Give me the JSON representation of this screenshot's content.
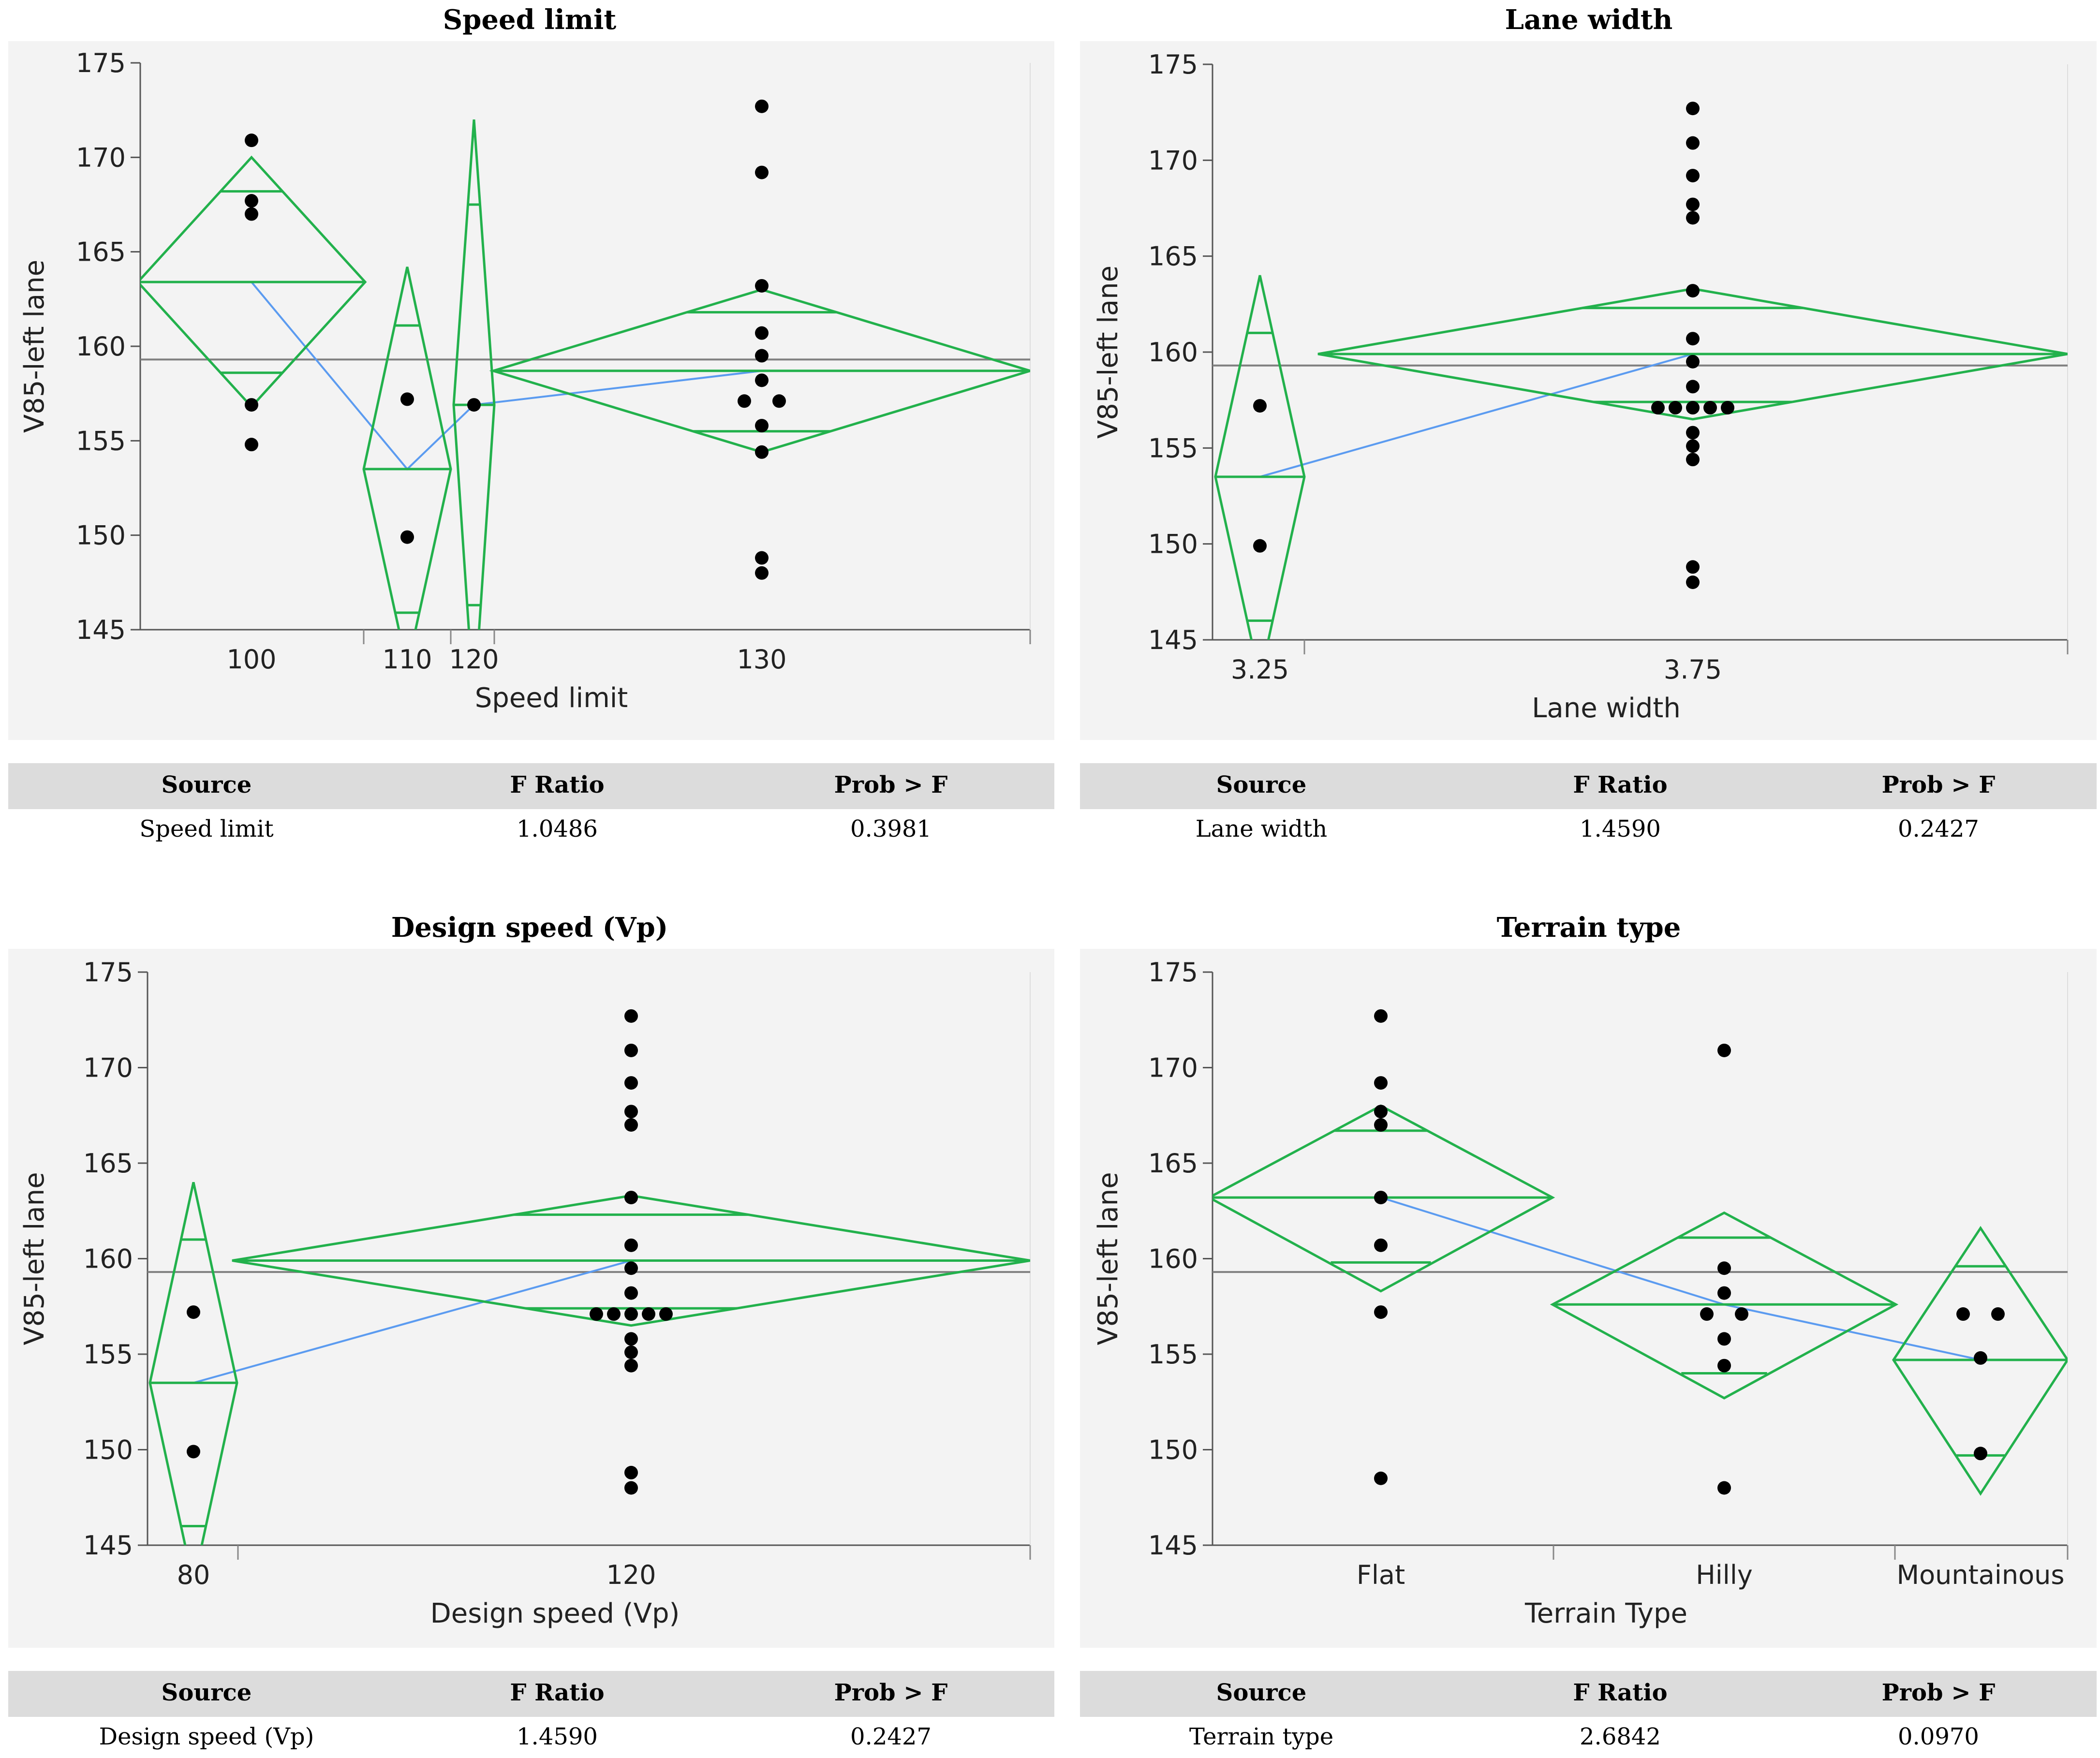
{
  "colors": {
    "diamond": "#22b14c",
    "means_line": "#5b9bf0",
    "grand_mean": "#808080",
    "point": "#000000",
    "panel_bg": "#f3f3f3",
    "table_header_bg": "#dcdcdc"
  },
  "chart_data": [
    {
      "type": "scatter",
      "title": "Speed limit",
      "xlabel": "Speed limit",
      "ylabel": "V85-left lane",
      "ylim": [
        145,
        175
      ],
      "yticks": [
        145,
        150,
        155,
        160,
        165,
        170,
        175
      ],
      "grand_mean": 159.3,
      "groups": [
        {
          "label": "100",
          "n": 6,
          "mean": 163.4,
          "ci": [
            156.8,
            170.0
          ],
          "overlap": [
            158.6,
            168.2
          ],
          "points": [
            [
              0,
              170.9
            ],
            [
              0,
              167.7
            ],
            [
              0,
              167.0
            ],
            [
              0,
              156.9
            ],
            [
              0,
              154.8
            ]
          ]
        },
        {
          "label": "110",
          "n": 3,
          "mean": 153.5,
          "ci": [
            143.0,
            164.2
          ],
          "overlap": [
            145.9,
            161.1
          ],
          "points": [
            [
              0,
              157.2
            ],
            [
              0,
              149.9
            ]
          ]
        },
        {
          "label": "120",
          "n": 1,
          "mean": 156.9,
          "ci": [
            141.0,
            172.0
          ],
          "overlap": [
            146.3,
            167.5
          ],
          "points": [
            [
              0,
              156.9
            ]
          ]
        },
        {
          "label": "130",
          "n": 13,
          "mean": 158.7,
          "ci": [
            154.4,
            163.0
          ],
          "overlap": [
            155.5,
            161.8
          ],
          "points": [
            [
              0,
              172.7
            ],
            [
              0,
              169.2
            ],
            [
              0,
              163.2
            ],
            [
              0,
              160.7
            ],
            [
              0,
              159.5
            ],
            [
              0,
              158.2
            ],
            [
              -1,
              157.1
            ],
            [
              1,
              157.1
            ],
            [
              0,
              155.8
            ],
            [
              0,
              154.4
            ],
            [
              0,
              148.8
            ],
            [
              0,
              148.0
            ]
          ]
        }
      ]
    },
    {
      "type": "scatter",
      "title": "Lane width",
      "xlabel": "Lane width",
      "ylabel": "V85-left lane",
      "ylim": [
        145,
        175
      ],
      "yticks": [
        145,
        150,
        155,
        160,
        165,
        170,
        175
      ],
      "grand_mean": 159.3,
      "groups": [
        {
          "label": "3.25",
          "n": 3,
          "mean": 153.5,
          "ci": [
            143.0,
            164.0
          ],
          "overlap": [
            146.0,
            161.0
          ],
          "points": [
            [
              0,
              157.2
            ],
            [
              0,
              149.9
            ]
          ]
        },
        {
          "label": "3.75",
          "n": 20,
          "mean": 159.9,
          "ci": [
            156.5,
            163.3
          ],
          "overlap": [
            157.4,
            162.3
          ],
          "points": [
            [
              0,
              172.7
            ],
            [
              0,
              170.9
            ],
            [
              0,
              169.2
            ],
            [
              0,
              167.7
            ],
            [
              0,
              167.0
            ],
            [
              0,
              163.2
            ],
            [
              0,
              160.7
            ],
            [
              0,
              159.5
            ],
            [
              0,
              158.2
            ],
            [
              -2,
              157.1
            ],
            [
              -1,
              157.1
            ],
            [
              0,
              157.1
            ],
            [
              1,
              157.1
            ],
            [
              2,
              157.1
            ],
            [
              0,
              155.8
            ],
            [
              0,
              155.1
            ],
            [
              0,
              154.4
            ],
            [
              0,
              148.8
            ],
            [
              0,
              148.0
            ]
          ]
        }
      ]
    },
    {
      "type": "scatter",
      "title": "Design speed (Vp)",
      "xlabel": "Design speed (Vp)",
      "ylabel": "V85-left lane",
      "ylim": [
        145,
        175
      ],
      "yticks": [
        145,
        150,
        155,
        160,
        165,
        170,
        175
      ],
      "grand_mean": 159.3,
      "groups": [
        {
          "label": "80",
          "n": 3,
          "mean": 153.5,
          "ci": [
            143.0,
            164.0
          ],
          "overlap": [
            146.0,
            161.0
          ],
          "points": [
            [
              0,
              157.2
            ],
            [
              0,
              149.9
            ]
          ]
        },
        {
          "label": "120",
          "n": 20,
          "mean": 159.9,
          "ci": [
            156.5,
            163.3
          ],
          "overlap": [
            157.4,
            162.3
          ],
          "points": [
            [
              0,
              172.7
            ],
            [
              0,
              170.9
            ],
            [
              0,
              169.2
            ],
            [
              0,
              167.7
            ],
            [
              0,
              167.0
            ],
            [
              0,
              163.2
            ],
            [
              0,
              160.7
            ],
            [
              0,
              159.5
            ],
            [
              0,
              158.2
            ],
            [
              -2,
              157.1
            ],
            [
              -1,
              157.1
            ],
            [
              0,
              157.1
            ],
            [
              1,
              157.1
            ],
            [
              2,
              157.1
            ],
            [
              0,
              155.8
            ],
            [
              0,
              155.1
            ],
            [
              0,
              154.4
            ],
            [
              0,
              148.8
            ],
            [
              0,
              148.0
            ]
          ]
        }
      ]
    },
    {
      "type": "scatter",
      "title": "Terrain type",
      "xlabel": "Terrain Type",
      "ylabel": "V85-left lane",
      "ylim": [
        145,
        175
      ],
      "yticks": [
        145,
        150,
        155,
        160,
        165,
        170,
        175
      ],
      "grand_mean": 159.3,
      "groups": [
        {
          "label": "Flat",
          "n": 9,
          "mean": 163.2,
          "ci": [
            158.3,
            168.0
          ],
          "overlap": [
            159.8,
            166.7
          ],
          "points": [
            [
              0,
              172.7
            ],
            [
              0,
              169.2
            ],
            [
              0,
              167.7
            ],
            [
              0,
              167.0
            ],
            [
              0,
              163.2
            ],
            [
              0,
              160.7
            ],
            [
              0,
              157.2
            ],
            [
              0,
              148.5
            ]
          ]
        },
        {
          "label": "Hilly",
          "n": 8,
          "mean": 157.6,
          "ci": [
            152.7,
            162.4
          ],
          "overlap": [
            154.0,
            161.1
          ],
          "points": [
            [
              0,
              170.9
            ],
            [
              0,
              159.5
            ],
            [
              0,
              158.2
            ],
            [
              -1,
              157.1
            ],
            [
              1,
              157.1
            ],
            [
              0,
              155.8
            ],
            [
              0,
              154.4
            ],
            [
              0,
              148.0
            ]
          ]
        },
        {
          "label": "Mountainous",
          "n": 5,
          "mean": 154.7,
          "ci": [
            147.7,
            161.6
          ],
          "overlap": [
            149.7,
            159.6
          ],
          "points": [
            [
              -1,
              157.1
            ],
            [
              1,
              157.1
            ],
            [
              0,
              154.8
            ],
            [
              0,
              149.8
            ]
          ]
        }
      ]
    }
  ],
  "tables": [
    {
      "headers": [
        "Source",
        "F Ratio",
        "Prob > F"
      ],
      "row": [
        "Speed limit",
        "1.0486",
        "0.3981"
      ]
    },
    {
      "headers": [
        "Source",
        "F Ratio",
        "Prob > F"
      ],
      "row": [
        "Lane width",
        "1.4590",
        "0.2427"
      ]
    },
    {
      "headers": [
        "Source",
        "F Ratio",
        "Prob > F"
      ],
      "row": [
        "Design speed (Vp)",
        "1.4590",
        "0.2427"
      ]
    },
    {
      "headers": [
        "Source",
        "F Ratio",
        "Prob > F"
      ],
      "row": [
        "Terrain type",
        "2.6842",
        "0.0970"
      ]
    }
  ]
}
